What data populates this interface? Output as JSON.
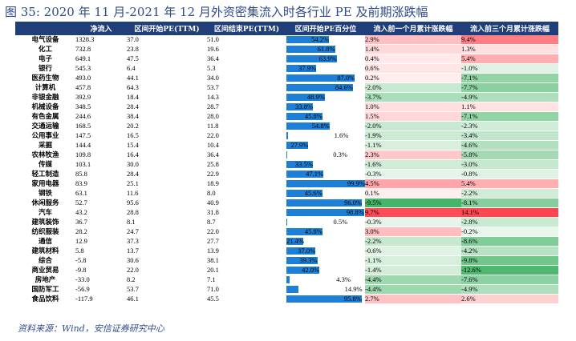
{
  "title": "图 35: 2020 年 11 月-2021 年 12 月外资密集流入时各行业 PE 及前期涨跌幅",
  "headers": [
    "",
    "净流入",
    "区间开始PE(TTM)",
    "区间结束PE(TTM)",
    "区间开始PE百分位",
    "流入前一个月累计涨跌幅",
    "流入前三个月累计涨跌幅"
  ],
  "rows": [
    {
      "name": "电气设备",
      "net": "1328.3",
      "pe_start": "37.0",
      "pe_end": "51.0",
      "pct_label": "54.2%",
      "pct": 54.2,
      "m1": "2.9%",
      "m1v": 2.9,
      "m3": "9.4%",
      "m3v": 9.4
    },
    {
      "name": "化工",
      "net": "732.8",
      "pe_start": "23.8",
      "pe_end": "19.6",
      "pct_label": "61.8%",
      "pct": 61.8,
      "m1": "1.4%",
      "m1v": 1.4,
      "m3": "1.3%",
      "m3v": 1.3
    },
    {
      "name": "电子",
      "net": "649.1",
      "pe_start": "47.5",
      "pe_end": "36.4",
      "pct_label": "63.9%",
      "pct": 63.9,
      "m1": "0.4%",
      "m1v": 0.4,
      "m3": "5.4%",
      "m3v": 5.4
    },
    {
      "name": "银行",
      "net": "545.3",
      "pe_start": "6.4",
      "pe_end": "5.3",
      "pct_label": "37.9%",
      "pct": 37.9,
      "m1": "0.6%",
      "m1v": 0.6,
      "m3": "-1.0%",
      "m3v": -1.0
    },
    {
      "name": "医药生物",
      "net": "493.0",
      "pe_start": "44.1",
      "pe_end": "34.0",
      "pct_label": "87.0%",
      "pct": 87.0,
      "m1": "0.2%",
      "m1v": 0.2,
      "m3": "-7.1%",
      "m3v": -7.1
    },
    {
      "name": "计算机",
      "net": "457.8",
      "pe_start": "64.3",
      "pe_end": "53.7",
      "pct_label": "84.6%",
      "pct": 84.6,
      "m1": "-2.0%",
      "m1v": -2.0,
      "m3": "-7.7%",
      "m3v": -7.7
    },
    {
      "name": "非银金融",
      "net": "392.9",
      "pe_start": "18.4",
      "pe_end": "14.3",
      "pct_label": "48.9%",
      "pct": 48.9,
      "m1": "-3.7%",
      "m1v": -3.7,
      "m3": "-4.9%",
      "m3v": -4.9
    },
    {
      "name": "机械设备",
      "net": "348.5",
      "pe_start": "28.4",
      "pe_end": "28.7",
      "pct_label": "33.8%",
      "pct": 33.8,
      "m1": "1.0%",
      "m1v": 1.0,
      "m3": "1.1%",
      "m3v": 1.1
    },
    {
      "name": "有色金属",
      "net": "244.6",
      "pe_start": "38.4",
      "pe_end": "28.0",
      "pct_label": "45.8%",
      "pct": 45.8,
      "m1": "1.5%",
      "m1v": 1.5,
      "m3": "-7.1%",
      "m3v": -7.1
    },
    {
      "name": "交通运输",
      "net": "168.5",
      "pe_start": "20.2",
      "pe_end": "11.8",
      "pct_label": "54.8%",
      "pct": 54.8,
      "m1": "-2.0%",
      "m1v": -2.0,
      "m3": "-2.3%",
      "m3v": -2.3
    },
    {
      "name": "公用事业",
      "net": "147.5",
      "pe_start": "16.5",
      "pe_end": "22.0",
      "pct_label": "1.6%",
      "pct": 1.6,
      "m1": "-1.9%",
      "m1v": -1.9,
      "m3": "-3.4%",
      "m3v": -3.4
    },
    {
      "name": "采掘",
      "net": "144.4",
      "pe_start": "15.4",
      "pe_end": "10.4",
      "pct_label": "27.9%",
      "pct": 27.9,
      "m1": "-1.1%",
      "m1v": -1.1,
      "m3": "-4.6%",
      "m3v": -4.6
    },
    {
      "name": "农林牧渔",
      "net": "109.8",
      "pe_start": "16.4",
      "pe_end": "36.4",
      "pct_label": "0.3%",
      "pct": 0.3,
      "m1": "2.3%",
      "m1v": 2.3,
      "m3": "-5.8%",
      "m3v": -5.8
    },
    {
      "name": "传媒",
      "net": "103.1",
      "pe_start": "30.0",
      "pe_end": "25.8",
      "pct_label": "33.5%",
      "pct": 33.5,
      "m1": "-1.6%",
      "m1v": -1.6,
      "m3": "-3.0%",
      "m3v": -3.0
    },
    {
      "name": "轻工制造",
      "net": "85.8",
      "pe_start": "28.4",
      "pe_end": "22.9",
      "pct_label": "47.1%",
      "pct": 47.1,
      "m1": "-0.3%",
      "m1v": -0.3,
      "m3": "-0.8%",
      "m3v": -0.8
    },
    {
      "name": "家用电器",
      "net": "83.9",
      "pe_start": "25.1",
      "pe_end": "18.9",
      "pct_label": "99.9%",
      "pct": 99.9,
      "m1": "4.5%",
      "m1v": 4.5,
      "m3": "5.4%",
      "m3v": 5.4
    },
    {
      "name": "钢铁",
      "net": "63.1",
      "pe_start": "11.6",
      "pe_end": "8.0",
      "pct_label": "45.6%",
      "pct": 45.6,
      "m1": "0.1%",
      "m1v": 0.1,
      "m3": "-2.2%",
      "m3v": -2.2
    },
    {
      "name": "休闲服务",
      "net": "52.7",
      "pe_start": "95.6",
      "pe_end": "40.9",
      "pct_label": "96.0%",
      "pct": 96.0,
      "m1": "-9.5%",
      "m1v": -9.5,
      "m3": "-8.1%",
      "m3v": -8.1
    },
    {
      "name": "汽车",
      "net": "43.2",
      "pe_start": "28.8",
      "pe_end": "31.8",
      "pct_label": "98.8%",
      "pct": 98.8,
      "m1": "9.7%",
      "m1v": 9.7,
      "m3": "14.1%",
      "m3v": 14.1
    },
    {
      "name": "建筑装饰",
      "net": "36.7",
      "pe_start": "8.1",
      "pe_end": "8.7",
      "pct_label": "0.5%",
      "pct": 0.5,
      "m1": "-0.3%",
      "m1v": -0.3,
      "m3": "-2.8%",
      "m3v": -2.8
    },
    {
      "name": "纺织服装",
      "net": "28.2",
      "pe_start": "24.7",
      "pe_end": "22.0",
      "pct_label": "45.8%",
      "pct": 45.8,
      "m1": "3.0%",
      "m1v": 3.0,
      "m3": "-0.2%",
      "m3v": -0.2
    },
    {
      "name": "通信",
      "net": "12.9",
      "pe_start": "37.3",
      "pe_end": "27.7",
      "pct_label": "21.4%",
      "pct": 21.4,
      "m1": "-2.2%",
      "m1v": -2.2,
      "m3": "-8.6%",
      "m3v": -8.6
    },
    {
      "name": "建筑材料",
      "net": "5.8",
      "pe_start": "13.7",
      "pe_end": "13.9",
      "pct_label": "37.0%",
      "pct": 37.0,
      "m1": "-0.6%",
      "m1v": -0.6,
      "m3": "-4.2%",
      "m3v": -4.2
    },
    {
      "name": "综合",
      "net": "-5.8",
      "pe_start": "30.6",
      "pe_end": "38.1",
      "pct_label": "39.3%",
      "pct": 39.3,
      "m1": "-1.1%",
      "m1v": -1.1,
      "m3": "-9.8%",
      "m3v": -9.8
    },
    {
      "name": "商业贸易",
      "net": "-9.8",
      "pe_start": "22.0",
      "pe_end": "20.1",
      "pct_label": "42.0%",
      "pct": 42.0,
      "m1": "-1.4%",
      "m1v": -1.4,
      "m3": "-12.6%",
      "m3v": -12.6
    },
    {
      "name": "房地产",
      "net": "-33.0",
      "pe_start": "8.2",
      "pe_end": "7.1",
      "pct_label": "4.3%",
      "pct": 4.3,
      "m1": "-4.4%",
      "m1v": -4.4,
      "m3": "-7.6%",
      "m3v": -7.6
    },
    {
      "name": "国防军工",
      "net": "-56.9",
      "pe_start": "53.7",
      "pe_end": "71.0",
      "pct_label": "14.9%",
      "pct": 14.9,
      "m1": "-4.4%",
      "m1v": -4.4,
      "m3": "-4.9%",
      "m3v": -4.9
    },
    {
      "name": "食品饮料",
      "net": "-117.9",
      "pe_start": "46.1",
      "pe_end": "45.5",
      "pct_label": "95.8%",
      "pct": 95.8,
      "m1": "2.7%",
      "m1v": 2.7,
      "m3": "2.6%",
      "m3v": 2.6
    }
  ],
  "colors": {
    "header_bg": "#1f3e7a",
    "bar": "#1e7fd8",
    "pos": "#e8454f",
    "neg": "#3fae62"
  },
  "source": "资料来源：Wind，安信证券研究中心"
}
